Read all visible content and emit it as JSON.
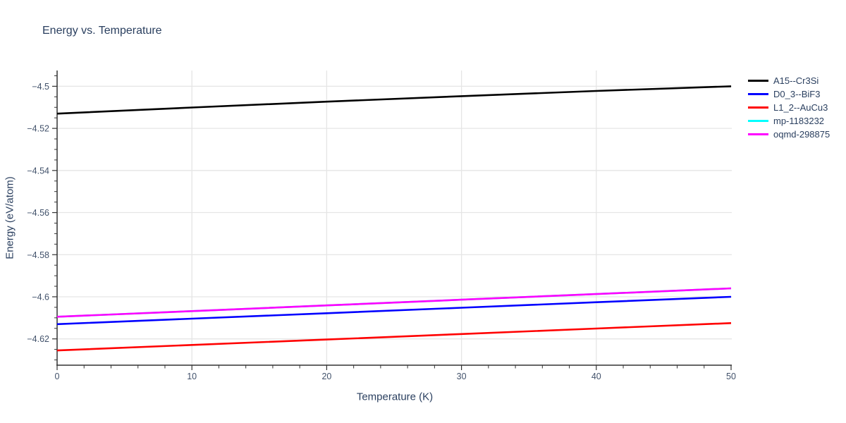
{
  "title": "Energy vs. Temperature",
  "colors": {
    "title_text": "#2a3f5f",
    "tick_text": "#42526b",
    "grid": "#e5e5e5",
    "axis": "#333333",
    "background": "#ffffff"
  },
  "chart_data": {
    "type": "line",
    "title": "Energy vs. Temperature",
    "xlabel": "Temperature (K)",
    "ylabel": "Energy (eV/atom)",
    "x": [
      0,
      10,
      20,
      30,
      40,
      50
    ],
    "series": [
      {
        "name": "A15--Cr3Si",
        "color": "#000000",
        "values": [
          -4.513,
          -4.5101,
          -4.5073,
          -4.5047,
          -4.5022,
          -4.5
        ]
      },
      {
        "name": "D0_3--BiF3",
        "color": "#0000ff",
        "values": [
          -4.613,
          -4.6104,
          -4.6078,
          -4.6052,
          -4.6026,
          -4.6
        ]
      },
      {
        "name": "L1_2--AuCu3",
        "color": "#ff0000",
        "values": [
          -4.6255,
          -4.6229,
          -4.6203,
          -4.6177,
          -4.6151,
          -4.6125
        ]
      },
      {
        "name": "mp-1183232",
        "color": "#00ffff",
        "values": [
          -4.6095,
          -4.6068,
          -4.6041,
          -4.6014,
          -4.5987,
          -4.596
        ]
      },
      {
        "name": "oqmd-298875",
        "color": "#ff00ff",
        "values": [
          -4.6095,
          -4.6068,
          -4.6041,
          -4.6014,
          -4.5987,
          -4.596
        ]
      }
    ],
    "xlim": [
      0,
      50
    ],
    "ylim": [
      -4.6325,
      -4.4925
    ],
    "x_ticks": [
      0,
      10,
      20,
      30,
      40,
      50
    ],
    "x_tick_labels": [
      "0",
      "10",
      "20",
      "30",
      "40",
      "50"
    ],
    "x_grid_ticks": [
      10,
      20,
      30,
      40
    ],
    "x_minor_step": 2,
    "y_ticks": [
      -4.5,
      -4.52,
      -4.54,
      -4.56,
      -4.58,
      -4.6,
      -4.62
    ],
    "y_tick_labels": [
      "−4.5",
      "−4.52",
      "−4.54",
      "−4.56",
      "−4.58",
      "−4.6",
      "−4.62"
    ],
    "y_minor_step": 0.005,
    "grid": true,
    "legend_position": "right"
  }
}
